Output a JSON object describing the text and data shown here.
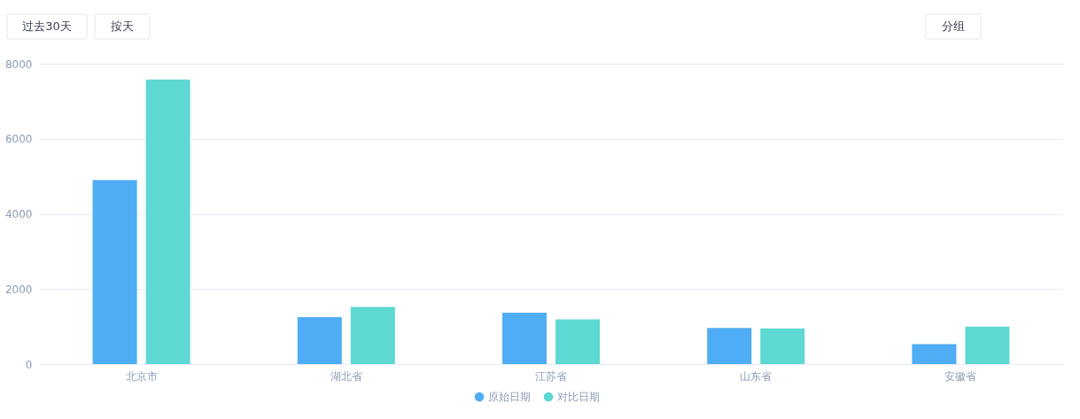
{
  "chart_data": {
    "type": "bar",
    "categories": [
      "北京市",
      "湖北省",
      "江苏省",
      "山东省",
      "安徽省"
    ],
    "series": [
      {
        "name": "原始日期",
        "color": "#4eadf5",
        "values": [
          4900,
          1250,
          1370,
          960,
          530
        ]
      },
      {
        "name": "对比日期",
        "color": "#5ed8d3",
        "values": [
          7580,
          1520,
          1190,
          950,
          1000
        ]
      }
    ],
    "ylim": [
      0,
      8000
    ],
    "yticks": [
      0,
      2000,
      4000,
      6000,
      8000
    ],
    "grid": "y",
    "legend": "bottom",
    "annotations": [
      "过去30天",
      "按天",
      "分组"
    ]
  }
}
